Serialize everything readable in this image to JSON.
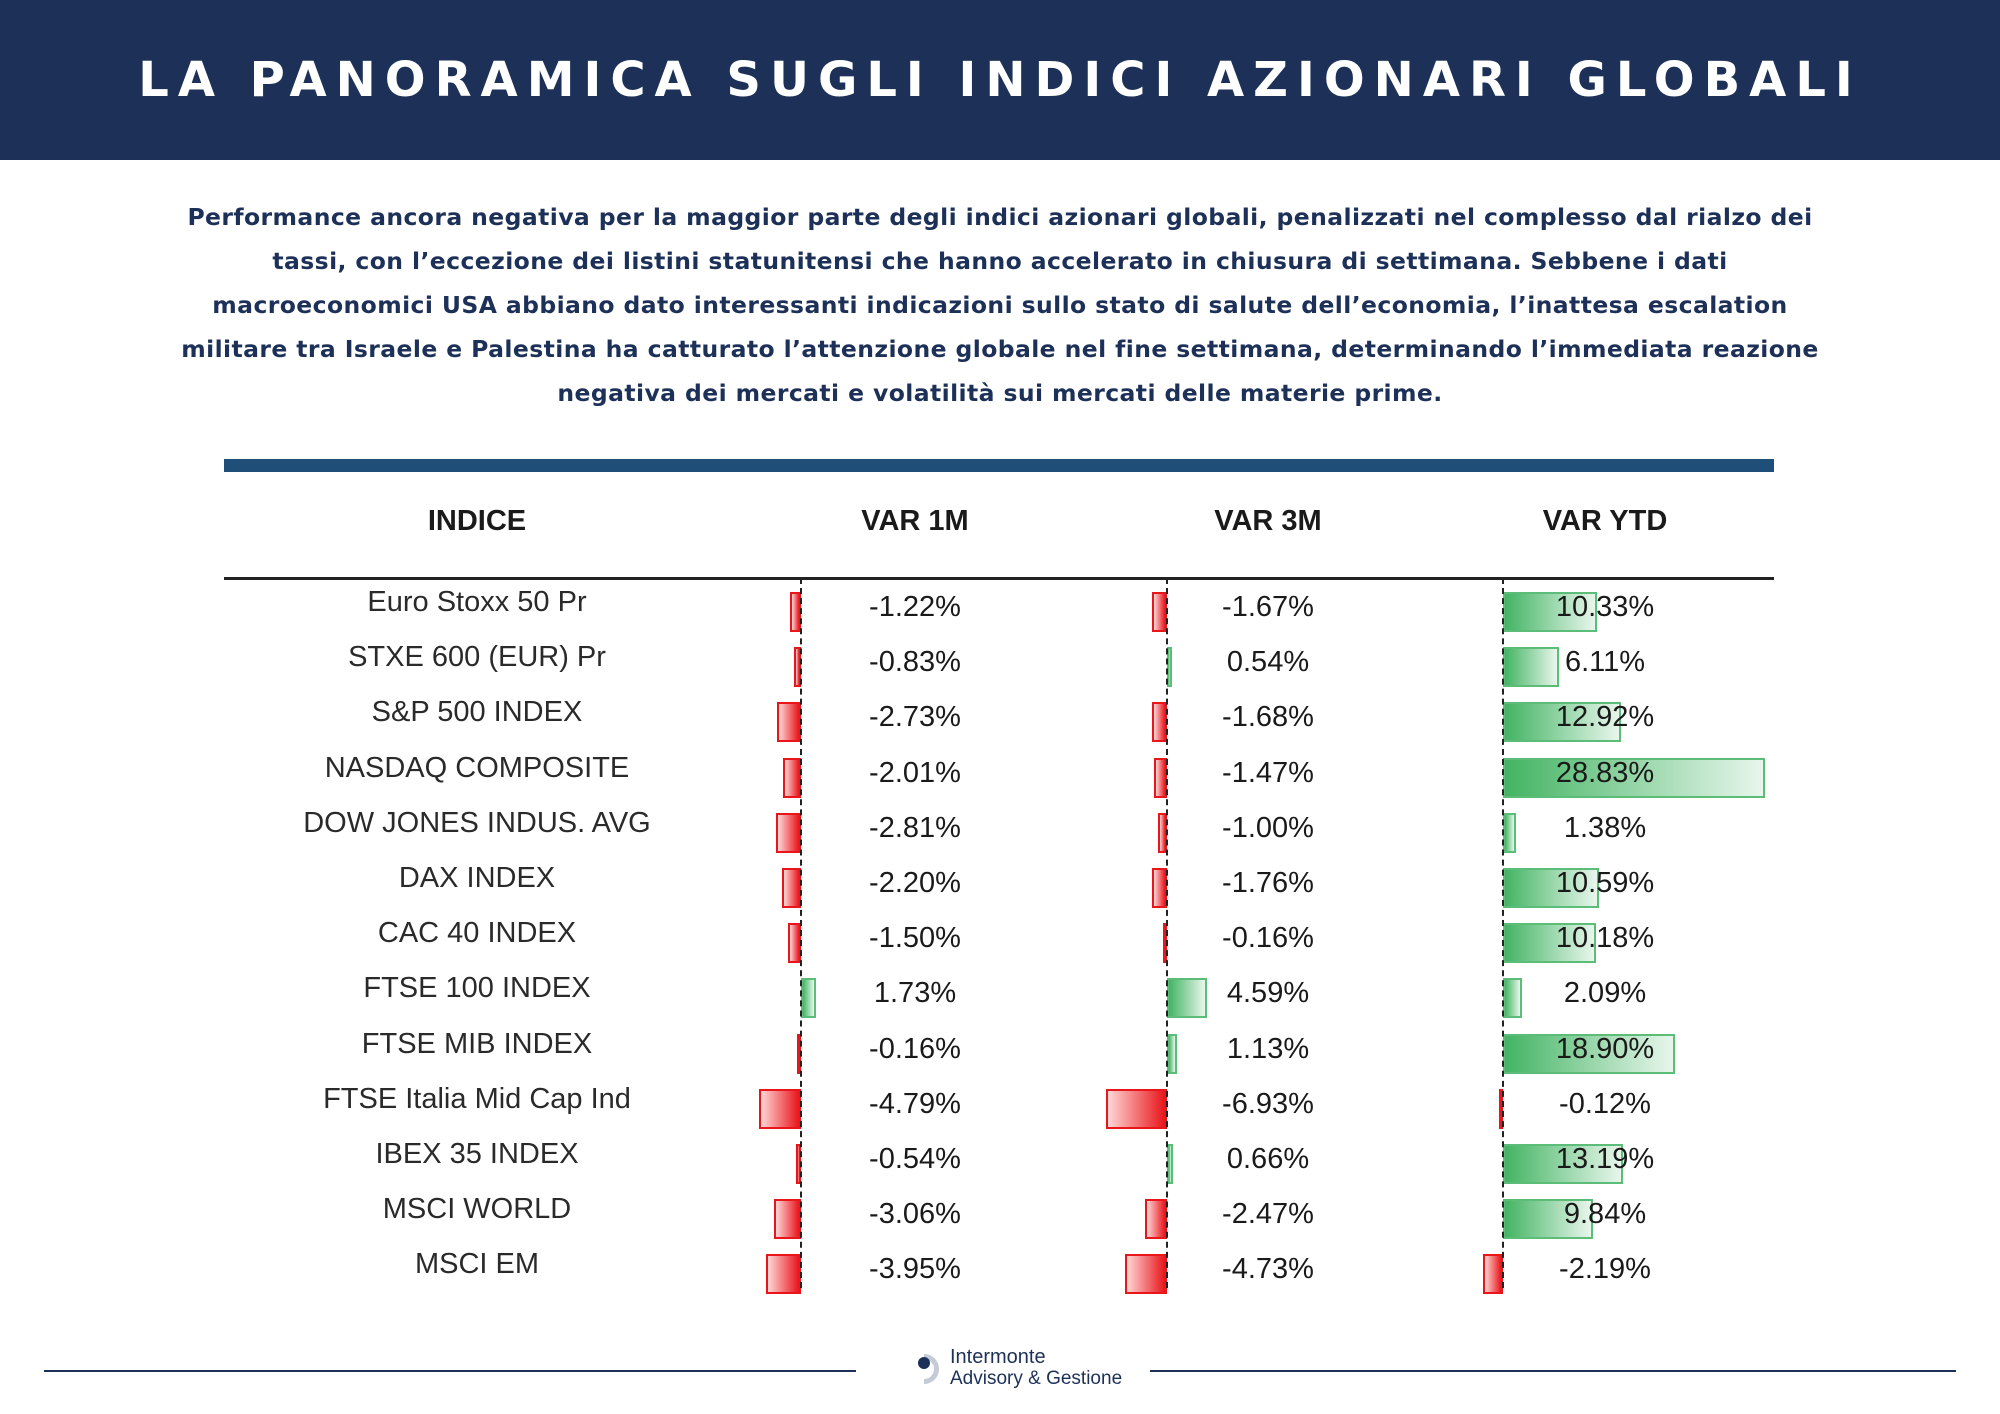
{
  "header": {
    "title": "LA PANORAMICA SUGLI INDICI AZIONARI GLOBALI"
  },
  "intro": {
    "lines": [
      "Performance ancora negativa per la maggior parte degli indici azionari globali, penalizzati nel complesso dal rialzo dei",
      "tassi, con l’eccezione dei listini statunitensi che hanno accelerato in chiusura di settimana. Sebbene i dati",
      "macroeconomici USA abbiano dato interessanti indicazioni sullo stato di salute dell’economia, l’inattesa escalation",
      "militare tra Israele e Palestina ha catturato l’attenzione globale nel fine settimana, determinando l’immediata reazione",
      "negativa dei mercati e volatilità sui mercati delle materie prime."
    ]
  },
  "table": {
    "headers": {
      "indice": "INDICE",
      "var1m": "VAR 1M",
      "var3m": "VAR 3M",
      "varytd": "VAR YTD"
    },
    "rows": [
      {
        "name": "Euro Stoxx 50 Pr",
        "v1m": -1.22,
        "v3m": -1.67,
        "vytd": 10.33,
        "t1m": "-1.22%",
        "t3m": "-1.67%",
        "tytd": "10.33%"
      },
      {
        "name": "STXE 600 (EUR) Pr",
        "v1m": -0.83,
        "v3m": 0.54,
        "vytd": 6.11,
        "t1m": "-0.83%",
        "t3m": "0.54%",
        "tytd": "6.11%"
      },
      {
        "name": "S&P 500 INDEX",
        "v1m": -2.73,
        "v3m": -1.68,
        "vytd": 12.92,
        "t1m": "-2.73%",
        "t3m": "-1.68%",
        "tytd": "12.92%"
      },
      {
        "name": "NASDAQ COMPOSITE",
        "v1m": -2.01,
        "v3m": -1.47,
        "vytd": 28.83,
        "t1m": "-2.01%",
        "t3m": "-1.47%",
        "tytd": "28.83%"
      },
      {
        "name": "DOW JONES INDUS. AVG",
        "v1m": -2.81,
        "v3m": -1.0,
        "vytd": 1.38,
        "t1m": "-2.81%",
        "t3m": "-1.00%",
        "tytd": "1.38%"
      },
      {
        "name": "DAX INDEX",
        "v1m": -2.2,
        "v3m": -1.76,
        "vytd": 10.59,
        "t1m": "-2.20%",
        "t3m": "-1.76%",
        "tytd": "10.59%"
      },
      {
        "name": "CAC 40 INDEX",
        "v1m": -1.5,
        "v3m": -0.16,
        "vytd": 10.18,
        "t1m": "-1.50%",
        "t3m": "-0.16%",
        "tytd": "10.18%"
      },
      {
        "name": "FTSE 100 INDEX",
        "v1m": 1.73,
        "v3m": 4.59,
        "vytd": 2.09,
        "t1m": "1.73%",
        "t3m": "4.59%",
        "tytd": "2.09%"
      },
      {
        "name": "FTSE MIB INDEX",
        "v1m": -0.16,
        "v3m": 1.13,
        "vytd": 18.9,
        "t1m": "-0.16%",
        "t3m": "1.13%",
        "tytd": "18.90%"
      },
      {
        "name": "FTSE Italia Mid Cap Ind",
        "v1m": -4.79,
        "v3m": -6.93,
        "vytd": -0.12,
        "t1m": "-4.79%",
        "t3m": "-6.93%",
        "tytd": "-0.12%"
      },
      {
        "name": "IBEX 35 INDEX",
        "v1m": -0.54,
        "v3m": 0.66,
        "vytd": 13.19,
        "t1m": "-0.54%",
        "t3m": "0.66%",
        "tytd": "13.19%"
      },
      {
        "name": "MSCI WORLD",
        "v1m": -3.06,
        "v3m": -2.47,
        "vytd": 9.84,
        "t1m": "-3.06%",
        "t3m": "-2.47%",
        "tytd": "9.84%"
      },
      {
        "name": "MSCI EM",
        "v1m": -3.95,
        "v3m": -4.73,
        "vytd": -2.19,
        "t1m": "-3.95%",
        "t3m": "-4.73%",
        "tytd": "-2.19%"
      }
    ]
  },
  "colors": {
    "navy": "#1d3158",
    "negative": "#e8151b",
    "positive": "#43b463",
    "rule": "#1f4e79"
  },
  "footer": {
    "brand_line1": "Intermonte",
    "brand_line2": "Advisory & Gestione",
    "logo_icon": "intermonte-logo-icon"
  }
}
